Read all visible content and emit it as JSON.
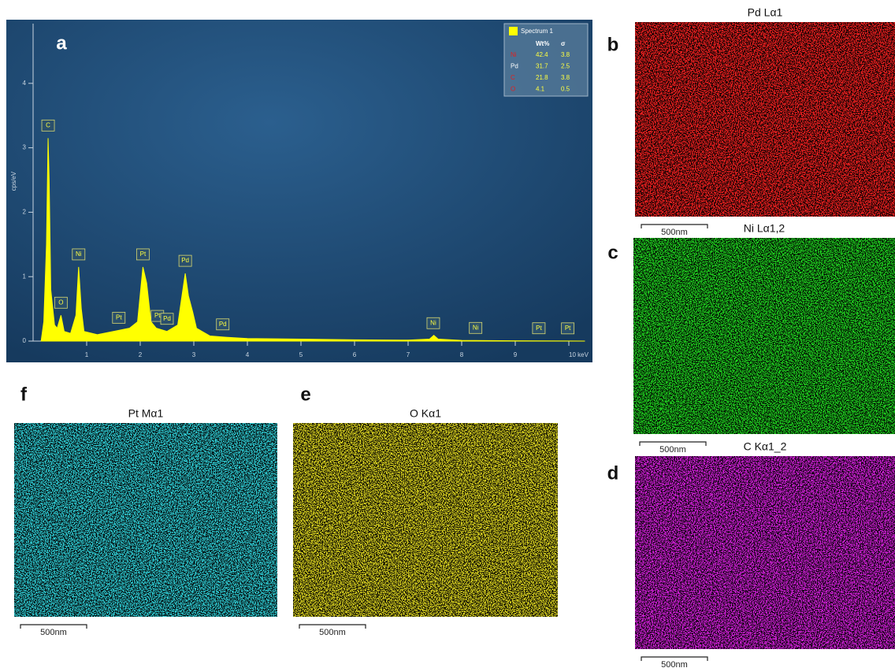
{
  "chart_data": {
    "type": "area",
    "panel_label": "a",
    "y_label": "cps/eV",
    "x": [
      0.15,
      0.2,
      0.25,
      0.28,
      0.3,
      0.33,
      0.4,
      0.45,
      0.52,
      0.58,
      0.7,
      0.8,
      0.85,
      0.9,
      0.95,
      1.2,
      1.5,
      1.8,
      1.95,
      2.05,
      2.12,
      2.2,
      2.3,
      2.5,
      2.7,
      2.84,
      2.9,
      2.98,
      3.05,
      3.3,
      3.6,
      4,
      5,
      6,
      7,
      7.4,
      7.48,
      7.56,
      8,
      9,
      10,
      10.3
    ],
    "series": [
      {
        "name": "Spectrum 1",
        "color": "#ffff00",
        "values": [
          0,
          0.3,
          1.5,
          3.15,
          2.5,
          0.8,
          0.25,
          0.2,
          0.4,
          0.15,
          0.12,
          0.4,
          1.15,
          0.5,
          0.15,
          0.1,
          0.15,
          0.2,
          0.3,
          1.15,
          0.9,
          0.3,
          0.2,
          0.15,
          0.25,
          1.05,
          0.7,
          0.45,
          0.2,
          0.08,
          0.06,
          0.04,
          0.03,
          0.02,
          0.015,
          0.03,
          0.09,
          0.03,
          0.01,
          0.005,
          0.002,
          0
        ]
      }
    ],
    "xlim": [
      0,
      10.3
    ],
    "xticks": [
      1,
      2,
      3,
      4,
      5,
      6,
      7,
      8,
      9,
      {
        "value": 10,
        "label": "10 keV"
      }
    ],
    "ylim": [
      0,
      5
    ],
    "yticks": [
      0,
      1,
      2,
      3,
      4
    ],
    "peak_labels": [
      {
        "label": "C",
        "x": 0.28
      },
      {
        "label": "O",
        "x": 0.52
      },
      {
        "label": "Ni",
        "x": 0.85
      },
      {
        "label": "Pt",
        "x": 1.6
      },
      {
        "label": "Pt",
        "x": 2.05
      },
      {
        "label": "Pt",
        "x": 2.32
      },
      {
        "label": "Pd",
        "x": 2.5
      },
      {
        "label": "Pd",
        "x": 2.84
      },
      {
        "label": "Pd",
        "x": 3.54
      },
      {
        "label": "Ni",
        "x": 7.47
      },
      {
        "label": "Ni",
        "x": 8.26
      },
      {
        "label": "Pt",
        "x": 9.44
      },
      {
        "label": "Pt",
        "x": 9.98
      }
    ],
    "legend_table": {
      "columns": [
        "Wt%",
        "σ"
      ],
      "rows": [
        {
          "element": "Ni",
          "color": "#e02020",
          "values": [
            42.4,
            3.8
          ]
        },
        {
          "element": "Pd",
          "color": "#ffffff",
          "values": [
            31.7,
            2.5
          ]
        },
        {
          "element": "C",
          "color": "#e02020",
          "values": [
            21.8,
            3.8
          ]
        },
        {
          "element": "O",
          "color": "#e02020",
          "values": [
            4.1,
            0.5
          ]
        }
      ]
    }
  },
  "maps": [
    {
      "panel_label": "b",
      "title": "Pd Lα1",
      "color": "#ff2020",
      "scale_bar": "500nm"
    },
    {
      "panel_label": "c",
      "title": "Ni Lα1,2",
      "color": "#20e020",
      "scale_bar": "500nm"
    },
    {
      "panel_label": "d",
      "title": "C Kα1_2",
      "color": "#e020e8",
      "scale_bar": "500nm"
    },
    {
      "panel_label": "f",
      "title": "Pt Mα1",
      "color": "#30d8e0",
      "scale_bar": "500nm"
    },
    {
      "panel_label": "e",
      "title": "O Kα1",
      "color": "#e8e020",
      "scale_bar": "500nm"
    }
  ]
}
